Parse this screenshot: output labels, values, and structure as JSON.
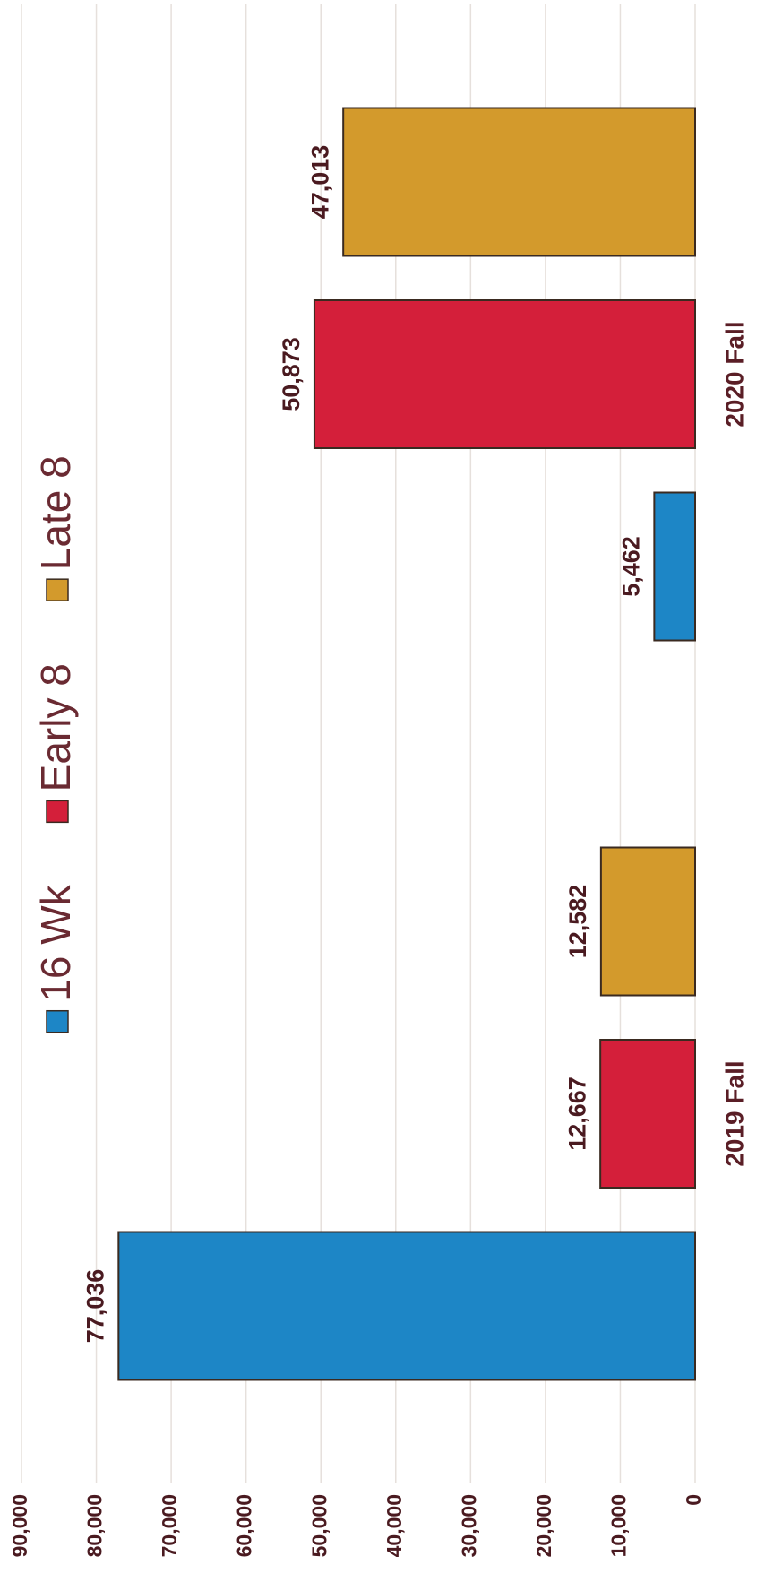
{
  "chart_data": {
    "type": "bar",
    "categories": [
      "2019 Fall",
      "2020 Fall"
    ],
    "series": [
      {
        "name": "16 Wk",
        "color": "#1d86c6",
        "values": [
          77036,
          5462
        ],
        "value_labels": [
          "77,036",
          "5,462"
        ]
      },
      {
        "name": "Early 8",
        "color": "#d41f3a",
        "values": [
          12667,
          50873
        ],
        "value_labels": [
          "12,667",
          "50,873"
        ]
      },
      {
        "name": "Late 8",
        "color": "#d39a2c",
        "values": [
          12582,
          47013
        ],
        "value_labels": [
          "12,582",
          "47,013"
        ]
      }
    ],
    "ylim": [
      0,
      90000
    ],
    "yticks": [
      0,
      {
        "value": 10000,
        "label": "10,000"
      },
      {
        "value": 20000,
        "label": "20,000"
      },
      {
        "value": 30000,
        "label": "30,000"
      },
      {
        "value": 40000,
        "label": "40,000"
      },
      {
        "value": 50000,
        "label": "50,000"
      },
      {
        "value": 60000,
        "label": "60,000"
      },
      {
        "value": 70000,
        "label": "70,000"
      },
      {
        "value": 80000,
        "label": "80,000"
      },
      {
        "value": 90000,
        "label": "90,000"
      }
    ],
    "grid": true,
    "legend": "top"
  }
}
